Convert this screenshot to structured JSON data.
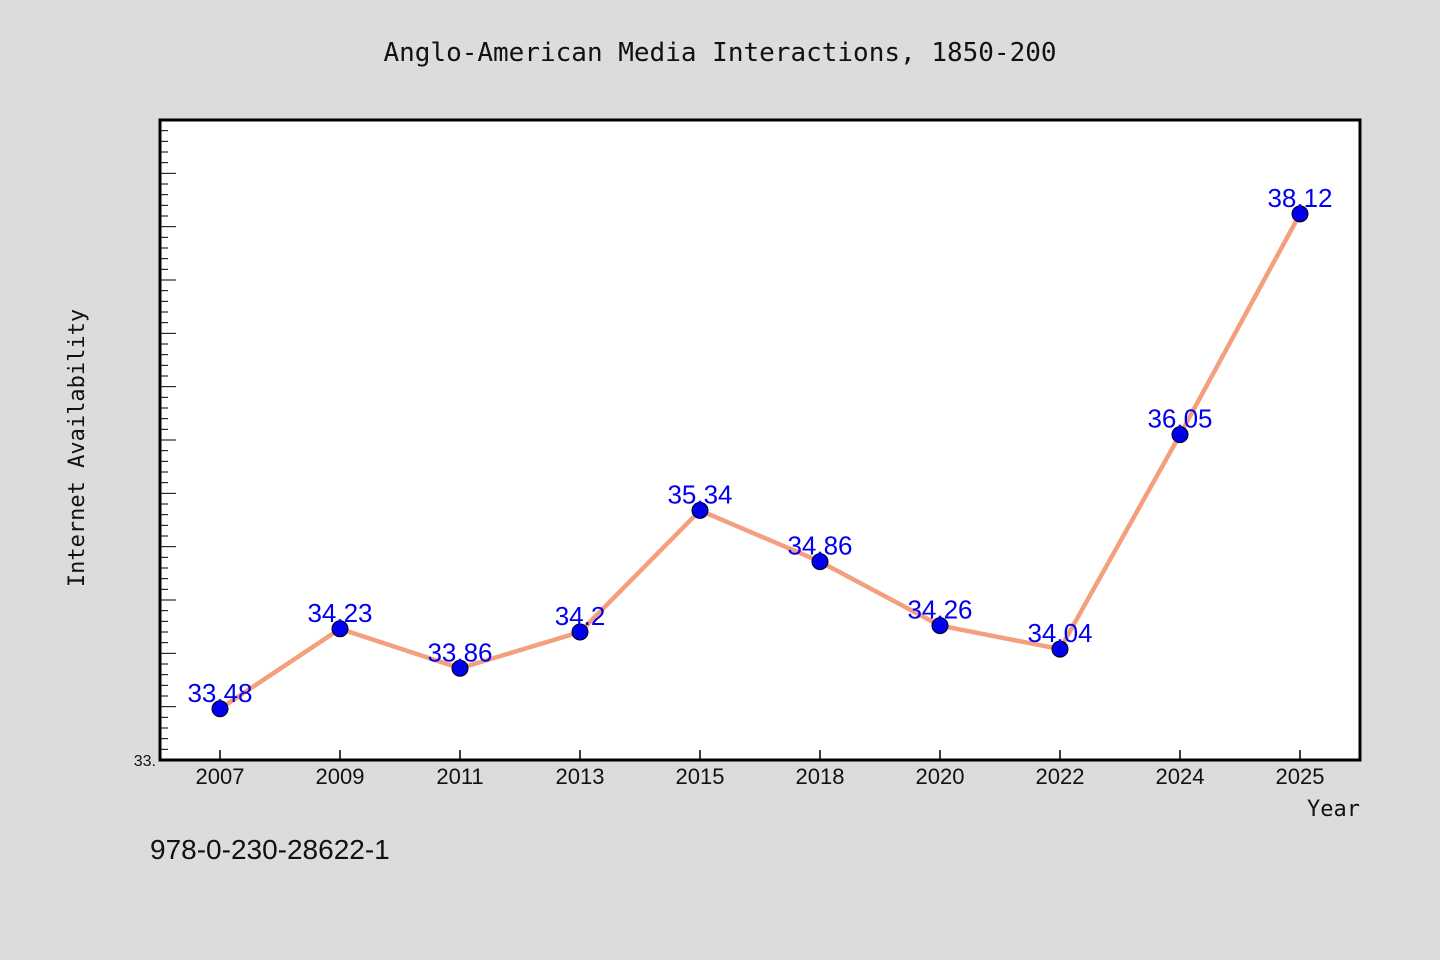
{
  "chart_data": {
    "type": "line",
    "title": "Anglo-American Media Interactions, 1850-200",
    "xlabel": "Year",
    "ylabel": "Internet Availability",
    "categories": [
      "2007",
      "2009",
      "2011",
      "2013",
      "2015",
      "2018",
      "2020",
      "2022",
      "2024",
      "2025"
    ],
    "series": [
      {
        "values": [
          33.48,
          34.23,
          33.86,
          34.2,
          35.34,
          34.86,
          34.26,
          34.04,
          36.05,
          38.12
        ],
        "line_color": "#f4a07e",
        "marker_color": "#0000ee",
        "label_color": "#0000ee"
      }
    ],
    "ylim": [
      33.0,
      39.0
    ],
    "y_tick_labels": [
      "33."
    ],
    "y_minor_tick_step": 0.1,
    "y_major_tick_step": 0.5,
    "data_labels": [
      "33.48",
      "34.23",
      "33.86",
      "34.2",
      "35.34",
      "34.86",
      "34.26",
      "34.04",
      "36.05",
      "38.12"
    ],
    "grid": false,
    "legend": "none"
  },
  "footer": {
    "code": "978-0-230-28622-1"
  }
}
